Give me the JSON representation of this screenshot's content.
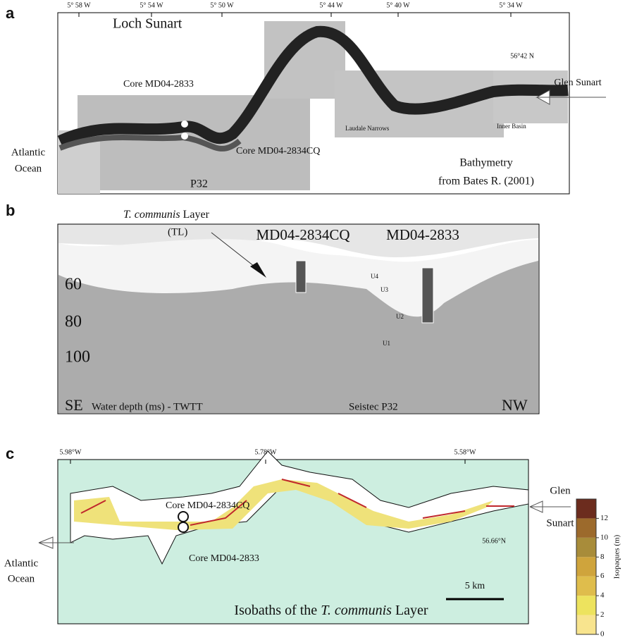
{
  "panel_a": {
    "label": "a",
    "lon_ticks": [
      "5° 58 W",
      "5° 54 W",
      "5° 50 W",
      "5° 44 W",
      "5° 40 W",
      "5° 34 W"
    ],
    "lat_tick": "56°42 N",
    "title": "Loch Sunart",
    "core_2833": "Core MD04-2833",
    "core_2834": "Core MD04-2834CQ",
    "profile": "P32",
    "atlantic": [
      "Atlantic",
      "Ocean"
    ],
    "glen": "Glen Sunart",
    "narrows": "Laudale Narrows",
    "inner": "Inner Basin",
    "source": [
      "Bathymetry",
      "from Bates R. (2001)"
    ]
  },
  "panel_b": {
    "label": "b",
    "layer_italic": "T. communis",
    "layer_rest": "Layer",
    "tl": "(TL)",
    "core_2834": "MD04-2834CQ",
    "core_2833": "MD04-2833",
    "depths": [
      "60",
      "80",
      "100"
    ],
    "units": [
      "U4",
      "U3",
      "U2",
      "U1"
    ],
    "se": "SE",
    "depth_axis": "Water depth (ms) - TWTT",
    "profile": "Seistec P32",
    "nw": "NW"
  },
  "panel_c": {
    "label": "c",
    "lon_ticks": [
      "5.98°W",
      "5.78°W",
      "5.58°W"
    ],
    "lat_tick": "56.66°N",
    "core_2834": "Core MD04-2834CQ",
    "core_2833": "Core MD04-2833",
    "atlantic": [
      "Atlantic",
      "Ocean"
    ],
    "glen": [
      "Glen",
      "Sunart"
    ],
    "scale": "5 km",
    "caption_pre": "Isobaths of the",
    "caption_italic": "T. communis",
    "caption_post": "Layer"
  },
  "colorbar": {
    "label": "Isopaques (m)",
    "lim": [
      0,
      14
    ],
    "ticks": [
      0,
      2,
      4,
      6,
      8,
      10,
      12
    ],
    "colors": [
      "#f8e48e",
      "#ede35e",
      "#dfbd4c",
      "#cfa43c",
      "#a88c3a",
      "#9c6a2c",
      "#6c2c1e"
    ]
  }
}
